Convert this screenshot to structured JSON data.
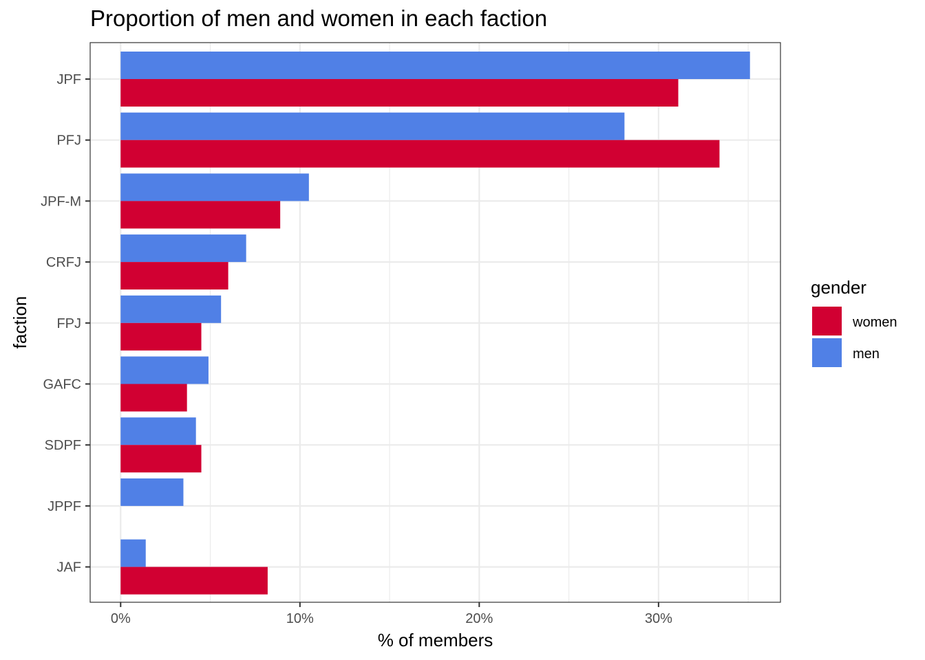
{
  "chart_data": {
    "type": "bar",
    "orientation": "horizontal",
    "title": "Proportion of men and women in each faction",
    "xlabel": "% of members",
    "ylabel": "faction",
    "categories": [
      "JPF",
      "PFJ",
      "JPF-M",
      "CRFJ",
      "FPJ",
      "GAFC",
      "SDPF",
      "JPPF",
      "JAF"
    ],
    "series": [
      {
        "name": "women",
        "color": "#d10032",
        "values": [
          31.1,
          33.4,
          8.9,
          6.0,
          4.5,
          3.7,
          4.5,
          null,
          8.2
        ]
      },
      {
        "name": "men",
        "color": "#5080e6",
        "values": [
          35.1,
          28.1,
          10.5,
          7.0,
          5.6,
          4.9,
          4.2,
          3.5,
          1.4
        ]
      }
    ],
    "xlim": [
      -1.7,
      36.8
    ],
    "xticks": [
      0,
      10,
      20,
      30
    ],
    "xtick_labels": [
      "0%",
      "10%",
      "20%",
      "30%"
    ],
    "grid": true,
    "legend": {
      "title": "gender",
      "position": "right"
    }
  }
}
